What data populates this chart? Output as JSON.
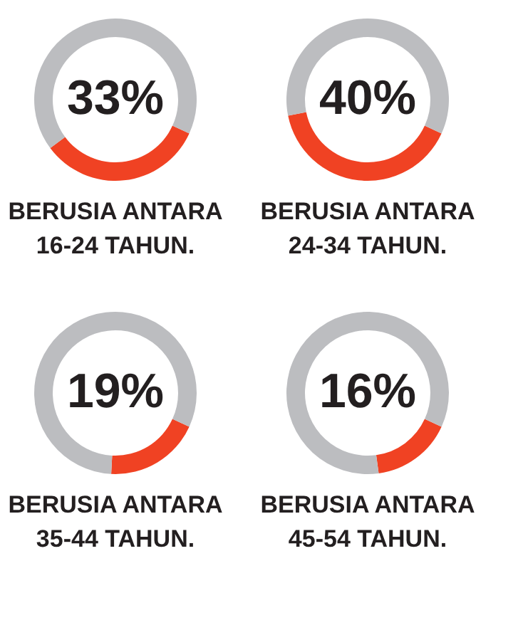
{
  "chart_data": [
    {
      "type": "donut",
      "categories": [
        null,
        null
      ],
      "values": [
        33,
        67
      ],
      "colors": [
        "#f04223",
        "#bcbdc0"
      ],
      "annotations": [
        "33%"
      ],
      "title": "BERUSIA ANTARA\n16-24 TAHUN."
    },
    {
      "type": "donut",
      "categories": [
        null,
        null
      ],
      "values": [
        40,
        60
      ],
      "colors": [
        "#f04223",
        "#bcbdc0"
      ],
      "annotations": [
        "40%"
      ],
      "title": "BERUSIA ANTARA\n24-34 TAHUN."
    },
    {
      "type": "donut",
      "categories": [
        null,
        null
      ],
      "values": [
        19,
        81
      ],
      "colors": [
        "#f04223",
        "#bcbdc0"
      ],
      "annotations": [
        "19%"
      ],
      "title": "BERUSIA ANTARA\n35-44  TAHUN."
    },
    {
      "type": "donut",
      "categories": [
        null,
        null
      ],
      "values": [
        16,
        84
      ],
      "colors": [
        "#f04223",
        "#bcbdc0"
      ],
      "annotations": [
        "16%"
      ],
      "title": "BERUSIA ANTARA\n45-54  TAHUN."
    }
  ]
}
